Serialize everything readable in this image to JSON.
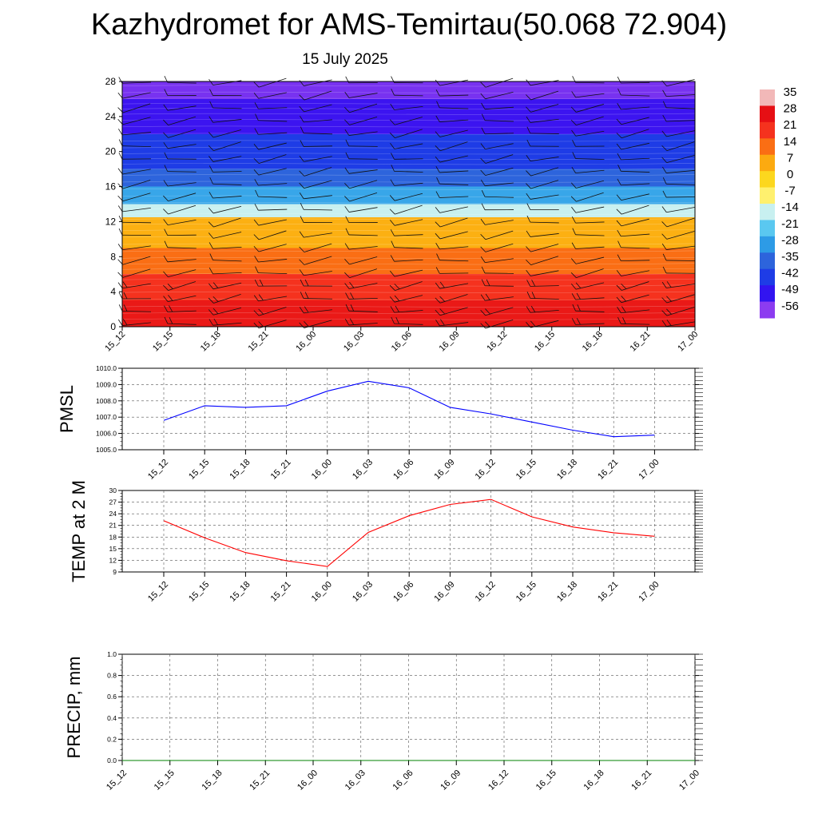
{
  "title": "Kazhydromet for AMS-Temirtau(50.068 72.904)",
  "subtitle": "15 July 2025",
  "chart_data": [
    {
      "type": "heatmap",
      "description_role": "vertical cross-section temperature with wind barbs",
      "x_ticks": [
        "15_12",
        "15_15",
        "15_18",
        "15_21",
        "16_00",
        "16_03",
        "16_06",
        "16_09",
        "16_12",
        "16_15",
        "16_18",
        "16_21",
        "17_00"
      ],
      "y_ticks": [
        "0",
        "4",
        "8",
        "12",
        "16",
        "20",
        "24",
        "28"
      ],
      "ylim": [
        0,
        28
      ],
      "colorbar": {
        "labels": [
          "35",
          "28",
          "21",
          "14",
          "7",
          "0",
          "-7",
          "-14",
          "-21",
          "-28",
          "-35",
          "-42",
          "-49",
          "-56"
        ],
        "colors": [
          "#f2b8b8",
          "#e60f14",
          "#f5321e",
          "#fa6e14",
          "#fcaa10",
          "#fcd71e",
          "#fff06e",
          "#c8f0f0",
          "#5ac8f0",
          "#2d9be6",
          "#2d64dc",
          "#1e3ce6",
          "#3214f0",
          "#8c3cf0"
        ]
      },
      "bands": [
        {
          "from": 0,
          "to": 3,
          "value": 26
        },
        {
          "from": 3,
          "to": 6,
          "value": 21
        },
        {
          "from": 6,
          "to": 9,
          "value": 14
        },
        {
          "from": 9,
          "to": 12.5,
          "value": 6
        },
        {
          "from": 12.5,
          "to": 14,
          "value": -12
        },
        {
          "from": 14,
          "to": 16,
          "value": -26
        },
        {
          "from": 16,
          "to": 18,
          "value": -38
        },
        {
          "from": 18,
          "to": 22,
          "value": -45
        },
        {
          "from": 22,
          "to": 26,
          "value": -52
        },
        {
          "from": 26,
          "to": 28,
          "value": -58
        }
      ]
    },
    {
      "type": "line",
      "ylabel": "PMSL",
      "x": [
        "15_12",
        "15_15",
        "15_18",
        "15_21",
        "16_00",
        "16_03",
        "16_06",
        "16_09",
        "16_12",
        "16_15",
        "16_18",
        "16_21",
        "17_00"
      ],
      "ylim": [
        1005.0,
        1010.0
      ],
      "y_ticks": [
        "1005.0",
        "1006.0",
        "1007.0",
        "1008.0",
        "1009.0",
        "1010.0"
      ],
      "series": [
        {
          "values": [
            1006.8,
            1007.7,
            1007.6,
            1007.7,
            1008.6,
            1009.2,
            1008.8,
            1007.6,
            1007.2,
            1006.7,
            1006.2,
            1005.8,
            1005.9
          ],
          "color": "#0000ff"
        }
      ]
    },
    {
      "type": "line",
      "ylabel": "TEMP at 2 M",
      "x": [
        "15_12",
        "15_15",
        "15_18",
        "15_21",
        "16_00",
        "16_03",
        "16_06",
        "16_09",
        "16_12",
        "16_15",
        "16_18",
        "16_21",
        "17_00"
      ],
      "ylim": [
        9,
        30
      ],
      "y_ticks": [
        "9",
        "12",
        "15",
        "18",
        "21",
        "24",
        "27",
        "30"
      ],
      "series": [
        {
          "values": [
            22.2,
            17.8,
            14.0,
            11.9,
            10.4,
            19.2,
            23.5,
            26.4,
            27.7,
            23.2,
            20.6,
            19.1,
            18.2
          ],
          "color": "#ff0000"
        }
      ]
    },
    {
      "type": "line",
      "ylabel": "PRECIP, mm",
      "x": [
        "15_12",
        "15_15",
        "15_18",
        "15_21",
        "16_00",
        "16_03",
        "16_06",
        "16_09",
        "16_12",
        "16_15",
        "16_18",
        "16_21",
        "17_00"
      ],
      "ylim": [
        0.0,
        1.0
      ],
      "y_ticks": [
        "0.0",
        "0.2",
        "0.4",
        "0.6",
        "0.8",
        "1.0"
      ],
      "series": [
        {
          "values": [
            0,
            0,
            0,
            0,
            0,
            0,
            0,
            0,
            0,
            0,
            0,
            0,
            0
          ],
          "color": "#008000"
        }
      ]
    }
  ]
}
